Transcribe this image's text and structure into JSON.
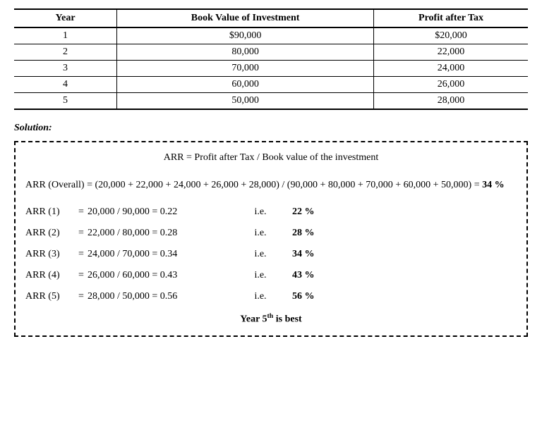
{
  "table": {
    "columns": [
      "Year",
      "Book Value of  Investment",
      "Profit after Tax"
    ],
    "rows": [
      {
        "year": "1",
        "book_value": "$90,000",
        "profit": "$20,000"
      },
      {
        "year": "2",
        "book_value": "80,000",
        "profit": "22,000"
      },
      {
        "year": "3",
        "book_value": "70,000",
        "profit": "24,000"
      },
      {
        "year": "4",
        "book_value": "60,000",
        "profit": "26,000"
      },
      {
        "year": "5",
        "book_value": "50,000",
        "profit": "28,000"
      }
    ]
  },
  "solution_label": "Solution:",
  "formula": "ARR =    Profit after Tax   /    Book value of the investment",
  "overall": {
    "prefix": "ARR (Overall) =    ",
    "expr": "(20,000 + 22,000 + 24,000 + 26,000 + 28,000) / (90,000 + 80,000 + 70,000 + 60,000 + 50,000)    = ",
    "result": "34 %"
  },
  "arr_rows": [
    {
      "label": "ARR (1)",
      "calc": "20,000   /   90,000 = 0.22",
      "ie": "i.e.",
      "pct": "22 %"
    },
    {
      "label": "ARR (2)",
      "calc": "22,000   /   80,000 = 0.28",
      "ie": "i.e.",
      "pct": "28 %"
    },
    {
      "label": "ARR (3)",
      "calc": "24,000   /   70,000 = 0.34",
      "ie": "i.e.",
      "pct": "34 %"
    },
    {
      "label": "ARR (4)",
      "calc": "26,000   /   60,000 = 0.43",
      "ie": "i.e.",
      "pct": "43 %"
    },
    {
      "label": "ARR (5)",
      "calc": "28,000   /   50,000 = 0.56",
      "ie": "i.e.",
      "pct": "56 %"
    }
  ],
  "conclusion": {
    "prefix": "Year 5",
    "sup": "th",
    "suffix": " is best"
  },
  "eq_sign": "="
}
